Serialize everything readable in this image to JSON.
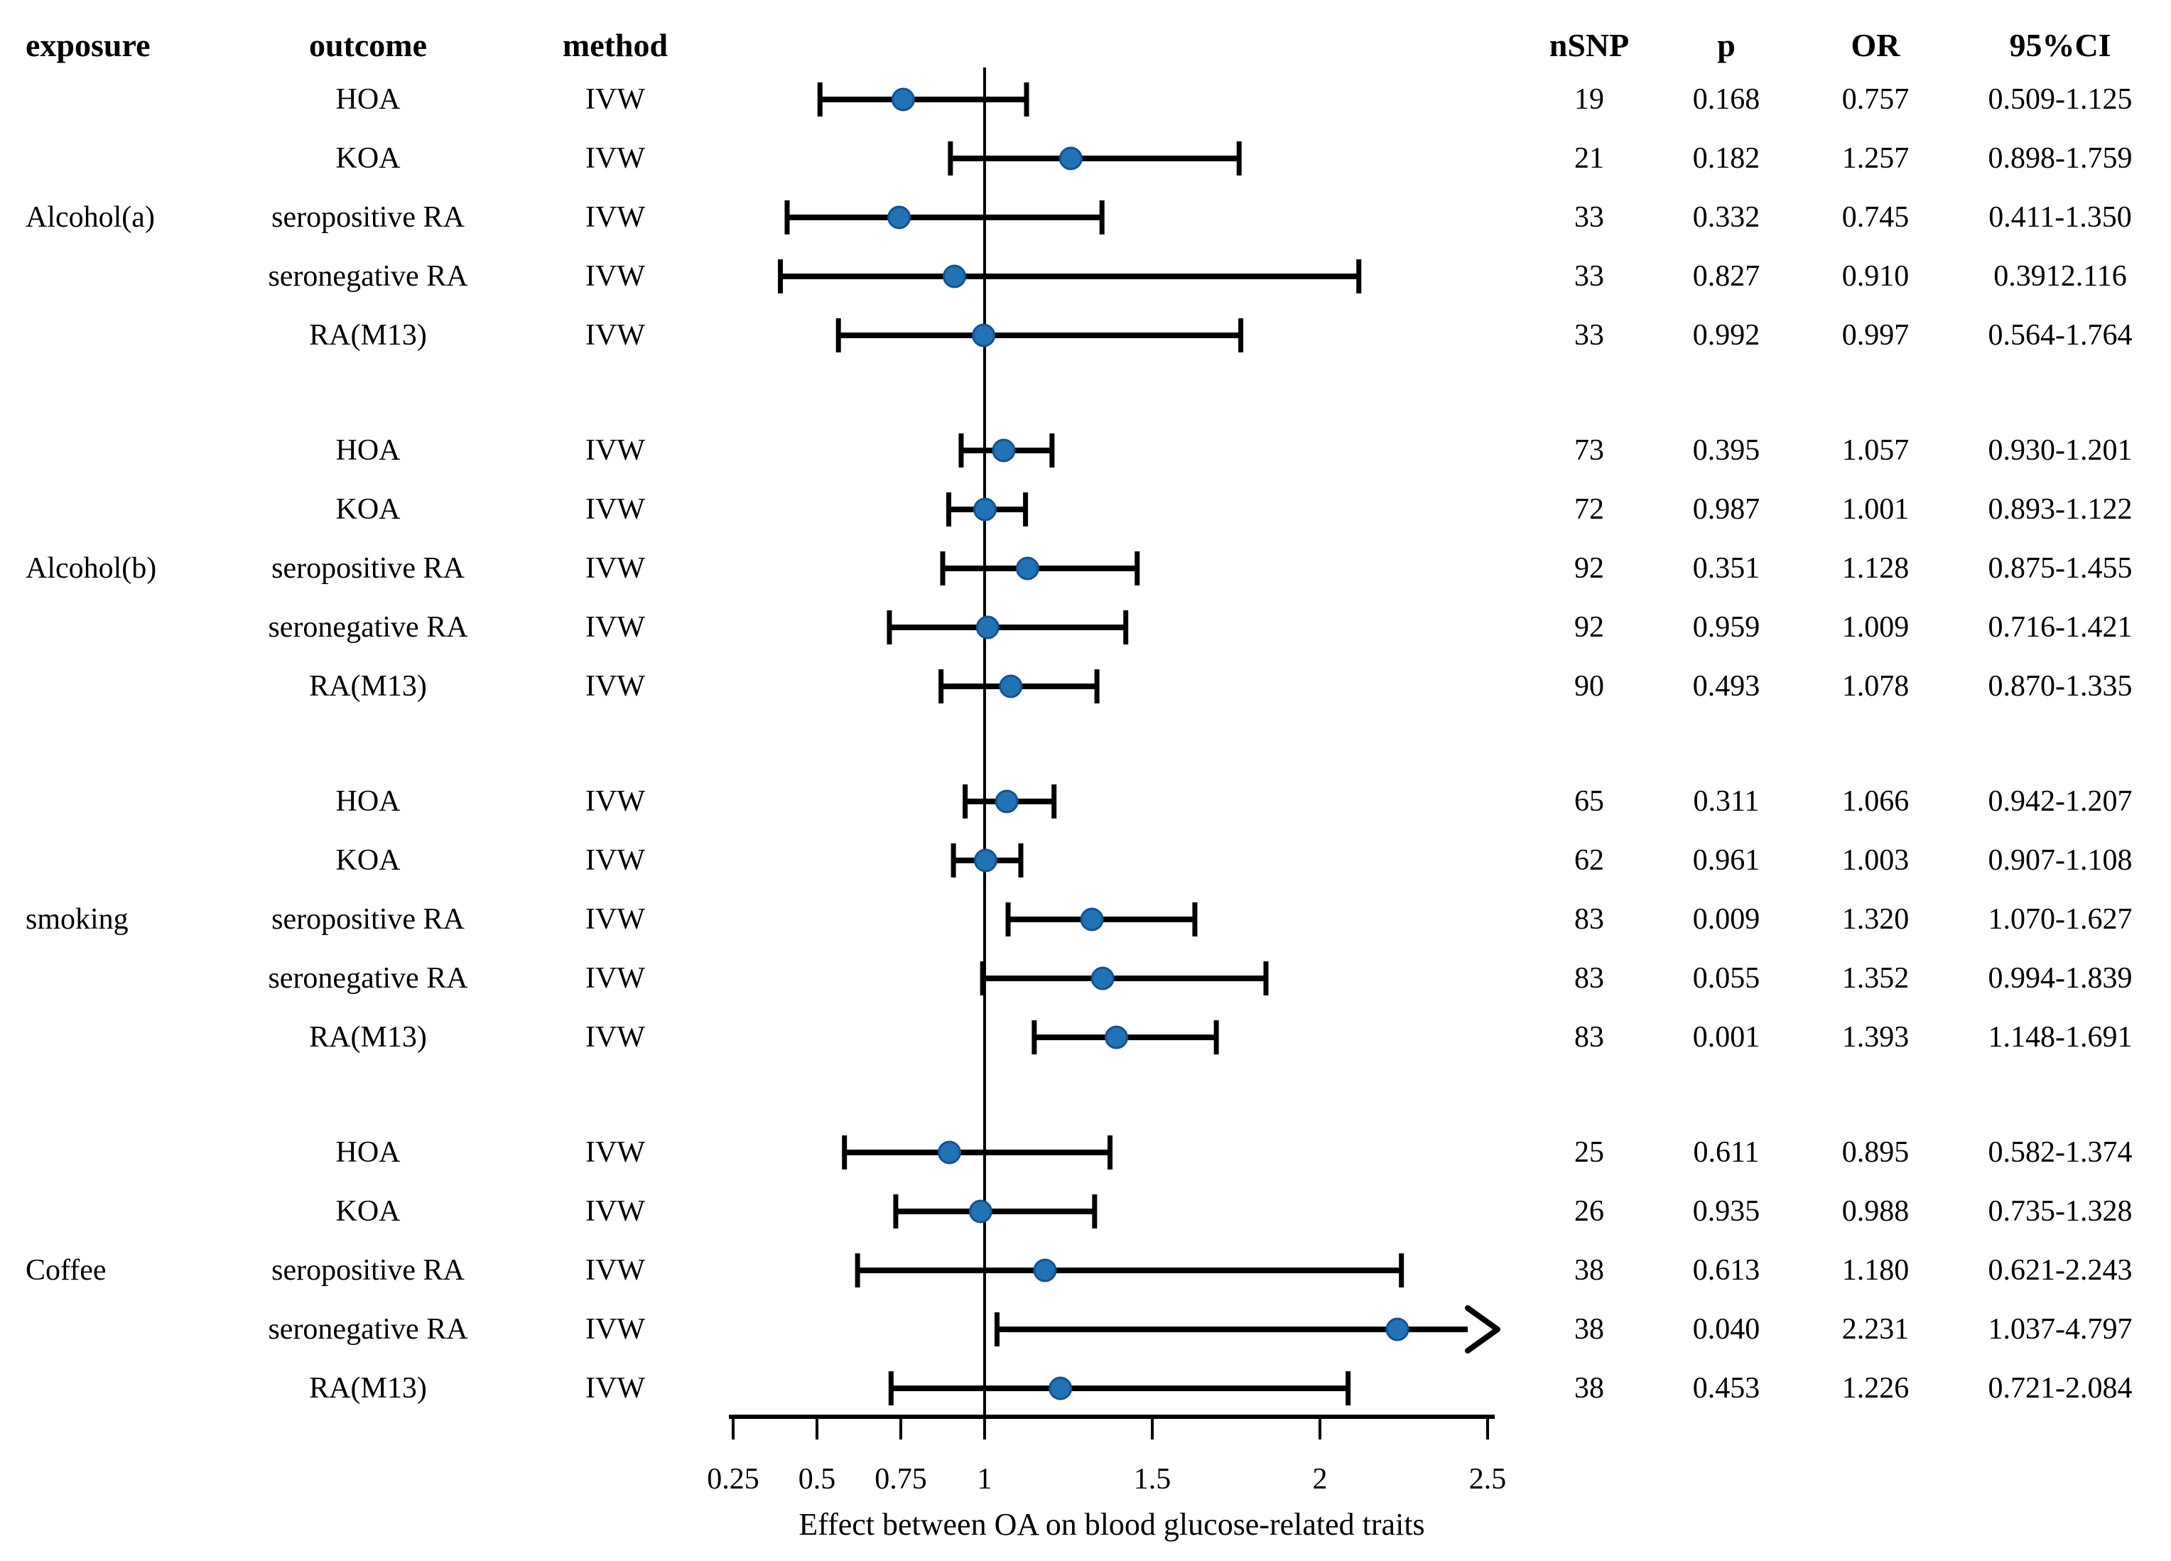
{
  "columns": {
    "exposure": "exposure",
    "outcome": "outcome",
    "method": "method",
    "nsnp": "nSNP",
    "p": "p",
    "or": "OR",
    "ci": "95%CI"
  },
  "chart_data": {
    "type": "forest",
    "title": "",
    "xlabel": "Effect between OA on blood glucose-related traits",
    "x_tick_labels": [
      "0.25",
      "0.5",
      "0.75",
      "1",
      "1.5",
      "2",
      "2.5"
    ],
    "x_tick_values": [
      0.25,
      0.5,
      0.75,
      1,
      1.5,
      2,
      2.5
    ],
    "xlim": [
      0.25,
      2.5
    ],
    "reference_or": 1,
    "grid": "off",
    "marker_color": "#2272b6",
    "marker_edge_color": "#14528f",
    "line_color": "#000000",
    "groups": [
      {
        "exposure": "Alcohol(a)",
        "rows": [
          {
            "outcome": "HOA",
            "method": "IVW",
            "nsnp": "19",
            "p": "0.168",
            "or_label": "0.757",
            "ci_label": "0.509-1.125",
            "or": 0.757,
            "lo": 0.509,
            "hi": 1.125
          },
          {
            "outcome": "KOA",
            "method": "IVW",
            "nsnp": "21",
            "p": "0.182",
            "or_label": "1.257",
            "ci_label": "0.898-1.759",
            "or": 1.257,
            "lo": 0.898,
            "hi": 1.759
          },
          {
            "outcome": "seropositive RA",
            "method": "IVW",
            "nsnp": "33",
            "p": "0.332",
            "or_label": "0.745",
            "ci_label": "0.411-1.350",
            "or": 0.745,
            "lo": 0.411,
            "hi": 1.35
          },
          {
            "outcome": "seronegative RA",
            "method": "IVW",
            "nsnp": "33",
            "p": "0.827",
            "or_label": "0.910",
            "ci_label": "0.3912.116",
            "or": 0.91,
            "lo": 0.391,
            "hi": 2.116
          },
          {
            "outcome": "RA(M13)",
            "method": "IVW",
            "nsnp": "33",
            "p": "0.992",
            "or_label": "0.997",
            "ci_label": "0.564-1.764",
            "or": 0.997,
            "lo": 0.564,
            "hi": 1.764
          }
        ]
      },
      {
        "exposure": "Alcohol(b)",
        "rows": [
          {
            "outcome": "HOA",
            "method": "IVW",
            "nsnp": "73",
            "p": "0.395",
            "or_label": "1.057",
            "ci_label": "0.930-1.201",
            "or": 1.057,
            "lo": 0.93,
            "hi": 1.201
          },
          {
            "outcome": "KOA",
            "method": "IVW",
            "nsnp": "72",
            "p": "0.987",
            "or_label": "1.001",
            "ci_label": "0.893-1.122",
            "or": 1.001,
            "lo": 0.893,
            "hi": 1.122
          },
          {
            "outcome": "seropositive RA",
            "method": "IVW",
            "nsnp": "92",
            "p": "0.351",
            "or_label": "1.128",
            "ci_label": "0.875-1.455",
            "or": 1.128,
            "lo": 0.875,
            "hi": 1.455
          },
          {
            "outcome": "seronegative RA",
            "method": "IVW",
            "nsnp": "92",
            "p": "0.959",
            "or_label": "1.009",
            "ci_label": "0.716-1.421",
            "or": 1.009,
            "lo": 0.716,
            "hi": 1.421
          },
          {
            "outcome": "RA(M13)",
            "method": "IVW",
            "nsnp": "90",
            "p": "0.493",
            "or_label": "1.078",
            "ci_label": "0.870-1.335",
            "or": 1.078,
            "lo": 0.87,
            "hi": 1.335
          }
        ]
      },
      {
        "exposure": "smoking",
        "rows": [
          {
            "outcome": "HOA",
            "method": "IVW",
            "nsnp": "65",
            "p": "0.311",
            "or_label": "1.066",
            "ci_label": "0.942-1.207",
            "or": 1.066,
            "lo": 0.942,
            "hi": 1.207
          },
          {
            "outcome": "KOA",
            "method": "IVW",
            "nsnp": "62",
            "p": "0.961",
            "or_label": "1.003",
            "ci_label": "0.907-1.108",
            "or": 1.003,
            "lo": 0.907,
            "hi": 1.108
          },
          {
            "outcome": "seropositive RA",
            "method": "IVW",
            "nsnp": "83",
            "p": "0.009",
            "or_label": "1.320",
            "ci_label": "1.070-1.627",
            "or": 1.32,
            "lo": 1.07,
            "hi": 1.627
          },
          {
            "outcome": "seronegative RA",
            "method": "IVW",
            "nsnp": "83",
            "p": "0.055",
            "or_label": "1.352",
            "ci_label": "0.994-1.839",
            "or": 1.352,
            "lo": 0.994,
            "hi": 1.839
          },
          {
            "outcome": "RA(M13)",
            "method": "IVW",
            "nsnp": "83",
            "p": "0.001",
            "or_label": "1.393",
            "ci_label": "1.148-1.691",
            "or": 1.393,
            "lo": 1.148,
            "hi": 1.691
          }
        ]
      },
      {
        "exposure": "Coffee",
        "rows": [
          {
            "outcome": "HOA",
            "method": "IVW",
            "nsnp": "25",
            "p": "0.611",
            "or_label": "0.895",
            "ci_label": "0.582-1.374",
            "or": 0.895,
            "lo": 0.582,
            "hi": 1.374
          },
          {
            "outcome": "KOA",
            "method": "IVW",
            "nsnp": "26",
            "p": "0.935",
            "or_label": "0.988",
            "ci_label": "0.735-1.328",
            "or": 0.988,
            "lo": 0.735,
            "hi": 1.328
          },
          {
            "outcome": "seropositive RA",
            "method": "IVW",
            "nsnp": "38",
            "p": "0.613",
            "or_label": "1.180",
            "ci_label": "0.621-2.243",
            "or": 1.18,
            "lo": 0.621,
            "hi": 2.243
          },
          {
            "outcome": "seronegative RA",
            "method": "IVW",
            "nsnp": "38",
            "p": "0.040",
            "or_label": "2.231",
            "ci_label": "1.037-4.797",
            "or": 2.231,
            "lo": 1.037,
            "hi": 4.797
          },
          {
            "outcome": "RA(M13)",
            "method": "IVW",
            "nsnp": "38",
            "p": "0.453",
            "or_label": "1.226",
            "ci_label": "0.721-2.084",
            "or": 1.226,
            "lo": 0.721,
            "hi": 2.084
          }
        ]
      }
    ]
  }
}
